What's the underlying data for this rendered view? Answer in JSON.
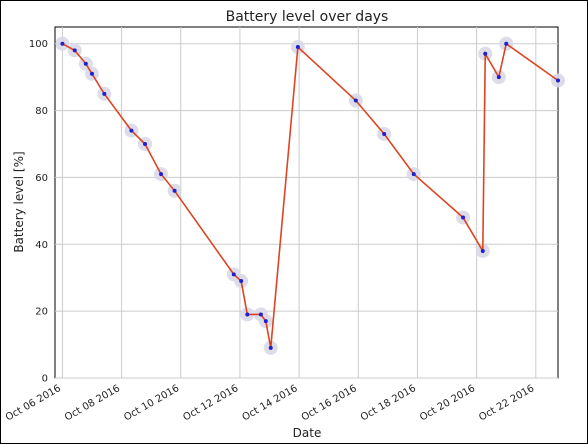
{
  "chart_data": {
    "type": "line",
    "title": "Battery level over days",
    "xlabel": "Date",
    "ylabel": "Battery level [%]",
    "xlim": [
      "2016-10-05T18:00",
      "2016-10-22T18:00"
    ],
    "ylim": [
      0,
      105
    ],
    "x_ticks": [
      "2016-10-06",
      "2016-10-08",
      "2016-10-10",
      "2016-10-12",
      "2016-10-14",
      "2016-10-16",
      "2016-10-18",
      "2016-10-20",
      "2016-10-22"
    ],
    "x_tick_labels": [
      "Oct 06 2016",
      "Oct 08 2016",
      "Oct 10 2016",
      "Oct 12 2016",
      "Oct 14 2016",
      "Oct 16 2016",
      "Oct 18 2016",
      "Oct 20 2016",
      "Oct 22 2016"
    ],
    "y_ticks": [
      0,
      20,
      40,
      60,
      80,
      100
    ],
    "grid": true,
    "series": [
      {
        "color": "#dd4422",
        "marker_color": "#2020cc",
        "x": [
          "2016-10-06T00:00",
          "2016-10-06T10:00",
          "2016-10-06T19:00",
          "2016-10-07T00:00",
          "2016-10-07T10:00",
          "2016-10-08T08:00",
          "2016-10-08T19:00",
          "2016-10-09T08:00",
          "2016-10-09T19:00",
          "2016-10-11T19:00",
          "2016-10-12T01:00",
          "2016-10-12T06:00",
          "2016-10-12T17:00",
          "2016-10-12T21:00",
          "2016-10-13T01:00",
          "2016-10-13T23:00",
          "2016-10-15T22:00",
          "2016-10-16T21:00",
          "2016-10-17T21:00",
          "2016-10-19T13:00",
          "2016-10-20T05:00",
          "2016-10-20T07:00",
          "2016-10-20T18:00",
          "2016-10-21T00:00",
          "2016-10-22T18:00"
        ],
        "values": [
          100,
          98,
          94,
          91,
          85,
          74,
          70,
          61,
          56,
          31,
          29,
          19,
          19,
          17,
          9,
          99,
          83,
          73,
          61,
          48,
          38,
          97,
          90,
          100,
          89
        ]
      }
    ]
  }
}
